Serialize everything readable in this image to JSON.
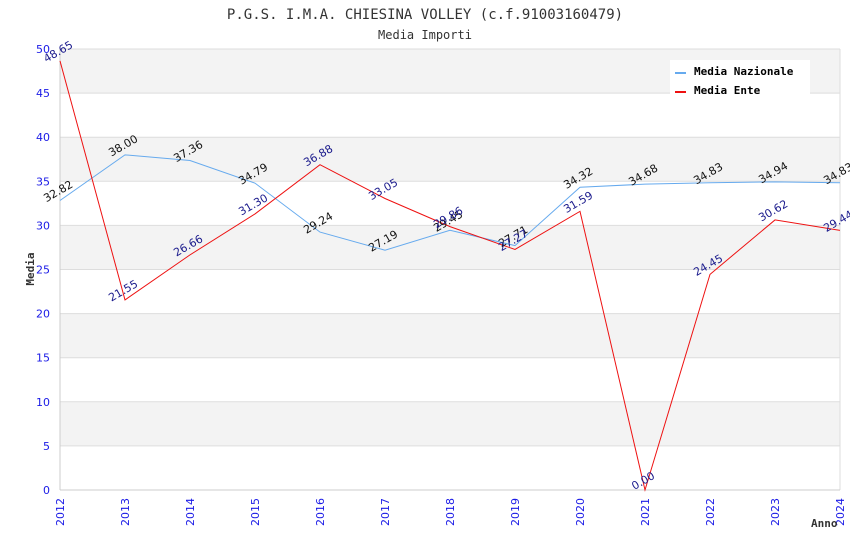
{
  "chart_data": {
    "type": "line",
    "title": "P.G.S. I.M.A. CHIESINA VOLLEY (c.f.91003160479)",
    "subtitle": "Media Importi",
    "xlabel": "Anno",
    "ylabel": "Media",
    "x": [
      "2012",
      "2013",
      "2014",
      "2015",
      "2016",
      "2017",
      "2018",
      "2019",
      "2020",
      "2021",
      "2022",
      "2023",
      "2024"
    ],
    "ylim": [
      0,
      50
    ],
    "yticks": [
      0,
      5,
      10,
      15,
      20,
      25,
      30,
      35,
      40,
      45,
      50
    ],
    "grid": true,
    "legend_position": "top-right",
    "series": [
      {
        "name": "Media Nazionale",
        "color": "#66aaee",
        "label_color": "#111111",
        "values": [
          32.82,
          38.0,
          37.36,
          34.79,
          29.24,
          27.19,
          29.45,
          27.71,
          34.32,
          34.68,
          34.83,
          34.94,
          34.83
        ],
        "labels": [
          "32.82",
          "38.00",
          "37.36",
          "34.79",
          "29.24",
          "27.19",
          "29.45",
          "27.71",
          "34.32",
          "34.68",
          "34.83",
          "34.94",
          "34.83"
        ]
      },
      {
        "name": "Media Ente",
        "color": "#ee1111",
        "label_color": "#1a1a8c",
        "values": [
          48.65,
          21.55,
          26.66,
          31.3,
          36.88,
          33.05,
          29.86,
          27.27,
          31.59,
          0.0,
          24.45,
          30.62,
          29.44
        ],
        "labels": [
          "48.65",
          "21.55",
          "26.66",
          "31.30",
          "36.88",
          "33.05",
          "29.86",
          "27.27",
          "31.59",
          "0.00",
          "24.45",
          "30.62",
          "29.44"
        ]
      }
    ]
  }
}
